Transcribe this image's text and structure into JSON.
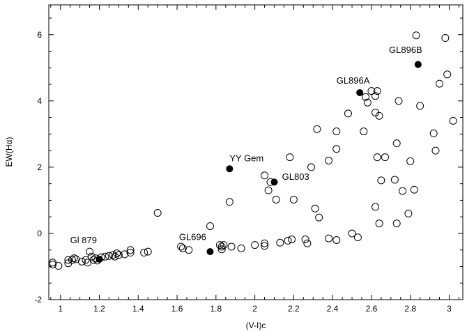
{
  "chart_data": {
    "type": "scatter",
    "title": "",
    "xlabel": "(V-I)c",
    "ylabel": "EW(Hα)",
    "xlim": [
      0.94,
      3.07
    ],
    "ylim": [
      -2,
      6.9
    ],
    "xticks": [
      1,
      1.2,
      1.4,
      1.6,
      1.8,
      2,
      2.2,
      2.4,
      2.6,
      2.8,
      3
    ],
    "xtick_labels": [
      "1",
      "1.2",
      "1.4",
      "1.6",
      "1.8",
      "2",
      "2.2",
      "2.4",
      "2.6",
      "2.8",
      "3"
    ],
    "yticks": [
      -2,
      0,
      2,
      4,
      6
    ],
    "ytick_labels": [
      "-2",
      "0",
      "2",
      "4",
      "6"
    ],
    "grid": false,
    "series": [
      {
        "marker": "open-circle",
        "color": "#000000",
        "x": [
          0.96,
          0.96,
          0.99,
          1.04,
          1.04,
          1.06,
          1.07,
          1.08,
          1.11,
          1.13,
          1.14,
          1.15,
          1.16,
          1.17,
          1.18,
          1.19,
          1.21,
          1.23,
          1.25,
          1.27,
          1.28,
          1.29,
          1.3,
          1.33,
          1.36,
          1.36,
          1.43,
          1.45,
          1.5,
          1.62,
          1.63,
          1.66,
          1.77,
          1.82,
          1.83,
          1.83,
          1.84,
          1.87,
          1.88,
          1.93,
          2.0,
          2.05,
          2.05,
          2.05,
          2.07,
          2.08,
          2.11,
          2.13,
          2.17,
          2.18,
          2.19,
          2.2,
          2.26,
          2.27,
          2.29,
          2.31,
          2.32,
          2.33,
          2.38,
          2.38,
          2.42,
          2.42,
          2.42,
          2.48,
          2.5,
          2.53,
          2.56,
          2.57,
          2.58,
          2.6,
          2.62,
          2.63,
          2.64,
          2.62,
          2.62,
          2.64,
          2.65,
          2.63,
          2.67,
          2.72,
          2.73,
          2.73,
          2.74,
          2.76,
          2.79,
          2.8,
          2.82,
          2.83,
          2.85,
          2.92,
          2.93,
          2.95,
          2.98,
          2.99,
          3.02
        ],
        "y": [
          -0.88,
          -0.94,
          -0.98,
          -0.8,
          -0.9,
          -0.8,
          -0.75,
          -0.78,
          -0.85,
          -0.8,
          -0.88,
          -0.55,
          -0.7,
          -0.8,
          -0.75,
          -0.82,
          -0.72,
          -0.7,
          -0.68,
          -0.65,
          -0.7,
          -0.6,
          -0.65,
          -0.63,
          -0.5,
          -0.58,
          -0.58,
          -0.55,
          0.62,
          -0.4,
          -0.45,
          -0.5,
          0.22,
          -0.35,
          -0.4,
          -0.48,
          -0.35,
          0.95,
          -0.4,
          -0.45,
          -0.35,
          -0.3,
          -0.38,
          1.75,
          1.3,
          1.55,
          1.02,
          -0.28,
          -0.22,
          2.3,
          -0.18,
          1.02,
          -0.18,
          -0.3,
          2.0,
          0.75,
          3.15,
          0.48,
          2.2,
          -0.15,
          2.55,
          3.08,
          -0.2,
          3.62,
          0.0,
          -0.12,
          3.08,
          4.12,
          3.95,
          4.3,
          3.65,
          4.3,
          3.55,
          4.15,
          0.8,
          0.3,
          1.6,
          2.3,
          2.3,
          1.62,
          2.72,
          0.3,
          4.0,
          1.28,
          0.6,
          2.18,
          1.32,
          5.98,
          3.85,
          3.02,
          2.5,
          4.52,
          5.9,
          4.8,
          3.4
        ]
      },
      {
        "marker": "filled-circle",
        "color": "#000000",
        "x": [
          1.2,
          1.77,
          1.87,
          2.1,
          2.54,
          2.84
        ],
        "y": [
          -0.78,
          -0.55,
          1.95,
          1.55,
          4.25,
          5.1
        ]
      }
    ],
    "annotations": [
      {
        "text": "Gl 879",
        "x": 1.05,
        "y": -0.3
      },
      {
        "text": "GL696",
        "x": 1.61,
        "y": -0.2
      },
      {
        "text": "YY Gem",
        "x": 1.87,
        "y": 2.18
      },
      {
        "text": "GL803",
        "x": 2.14,
        "y": 1.62
      },
      {
        "text": "GL896A",
        "x": 2.42,
        "y": 4.52
      },
      {
        "text": "GL896B",
        "x": 2.69,
        "y": 5.45
      }
    ]
  }
}
